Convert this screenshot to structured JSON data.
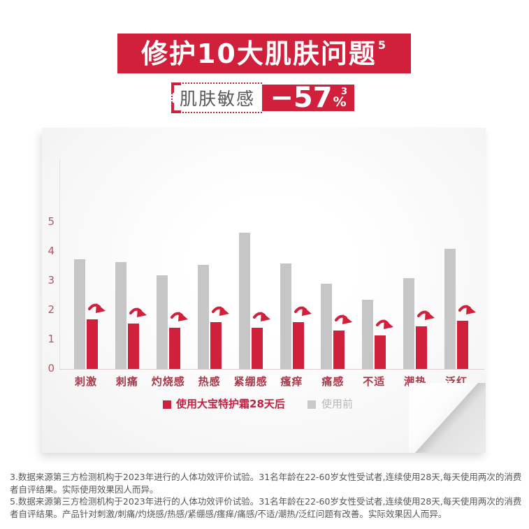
{
  "header": {
    "title": "修护10大肌肤问题",
    "title_superscript": "5",
    "claim": {
      "label": "肌肤敏感",
      "value": "−57",
      "unit": "%",
      "superscript": "3"
    }
  },
  "chart_data": {
    "type": "bar",
    "title": "",
    "categories": [
      "刺激",
      "刺痛",
      "灼烧感",
      "热感",
      "紧绷感",
      "瘙痒",
      "痛感",
      "不适",
      "潮热",
      "泛红"
    ],
    "series": [
      {
        "name": "使用大宝特护霜28天后",
        "color": "#d1203c",
        "values": [
          1.7,
          1.55,
          1.4,
          1.6,
          1.4,
          1.6,
          1.3,
          1.15,
          1.45,
          1.65
        ]
      },
      {
        "name": "使用前",
        "color": "#c6c6c6",
        "values": [
          3.75,
          3.65,
          3.2,
          3.55,
          4.65,
          3.6,
          2.9,
          2.35,
          3.1,
          4.1
        ]
      }
    ],
    "xlabel": "",
    "ylabel": "",
    "ylim": [
      0,
      5
    ],
    "yticks": [
      0,
      1,
      2,
      3,
      4,
      5
    ],
    "grid": false,
    "legend_position": "bottom",
    "annotations": "red curved decrease arrow above each red bar"
  },
  "footnotes": [
    "3.数据来源第三方检测机构于2023年进行的人体功效评价试验。31名年龄在22-60岁女性受试者,连续使用28天,每天使用两次的消费者自评结果。实际使用效果因人而异。",
    "5.数据来源第三方检测机构于2023年进行的人体功效评价试验。31名年龄在22-60岁女性受试者,连续使用28天,每天使用两次的消费者自评结果。产品针对刺激/刺痛/灼烧感/热感/紧绷感/瘙痒/痛感/不适/潮热/泛红问题有改善。实际效果因人而异。"
  ],
  "colors": {
    "accent_red": "#d1203c",
    "bar_gray": "#c6c6c6",
    "axis_tick_text": "#b25662",
    "category_text": "#a8394a",
    "legend_gray_text": "#b9b9b9",
    "footnote_text": "#57575a"
  }
}
